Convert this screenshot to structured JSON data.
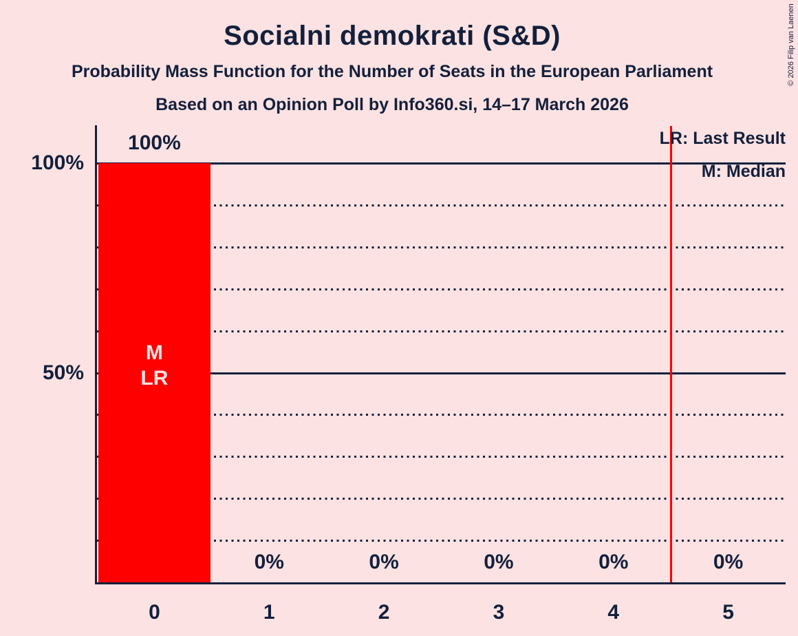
{
  "title": "Socialni demokrati (S&D)",
  "subtitle_line1": "Probability Mass Function for the Number of Seats in the European Parliament",
  "subtitle_line2": "Based on an Opinion Poll by Info360.si, 14–17 March 2026",
  "copyright": "© 2026 Filip van Laenen",
  "legend": {
    "last_result": "LR: Last Result",
    "median": "M: Median"
  },
  "colors": {
    "background": "#fce2e2",
    "ink": "#13203c",
    "bar": "#ff0000",
    "majority_line": "#ff0000",
    "bar_annotation_text": "#fce2e2"
  },
  "chart_data": {
    "type": "bar",
    "title": "Socialni demokrati (S&D)",
    "categories": [
      "0",
      "1",
      "2",
      "3",
      "4",
      "5"
    ],
    "values": [
      100,
      0,
      0,
      0,
      0,
      0
    ],
    "value_labels": [
      "100%",
      "0%",
      "0%",
      "0%",
      "0%",
      "0%"
    ],
    "ylim": [
      0,
      100
    ],
    "grid": "horizontal",
    "y_axis_labels": [
      {
        "text": "100%",
        "percent": 100
      },
      {
        "text": "50%",
        "percent": 50
      }
    ],
    "solid_gridline_percents": [
      100,
      50
    ],
    "dotted_gridline_percents": [
      90,
      80,
      70,
      60,
      40,
      30,
      20,
      10
    ],
    "majority_threshold_x": 4.5,
    "median_category": "0",
    "last_result_category": "0",
    "bar_annotations": [
      {
        "category_index": 0,
        "lines": [
          "M",
          "LR"
        ]
      }
    ],
    "legend_position": "top-right"
  }
}
